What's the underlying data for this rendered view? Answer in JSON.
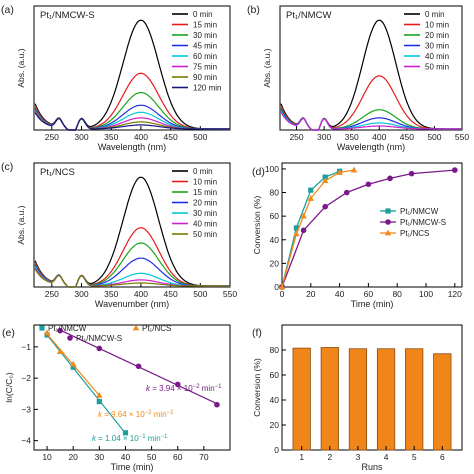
{
  "chart_data": [
    {
      "id": "a",
      "type": "line",
      "panel_label": "(a)",
      "sample": "Pt₁/NMCW-S",
      "xlabel": "Wavelength (nm)",
      "ylabel": "Abs. (a.u.)",
      "xlim": [
        220,
        550
      ],
      "xticks": [
        250,
        300,
        350,
        400,
        450,
        500
      ],
      "legend_position": "top-right",
      "peak": {
        "x": 400,
        "width": 30
      },
      "series": [
        {
          "name": "0 min",
          "color": "#000000",
          "peak": 2.15,
          "base": 0.5
        },
        {
          "name": "15 min",
          "color": "#e8191c",
          "peak": 1.1,
          "base": 0.46
        },
        {
          "name": "30 min",
          "color": "#1aa41a",
          "peak": 0.72,
          "base": 0.42
        },
        {
          "name": "45 min",
          "color": "#1f2fe6",
          "peak": 0.47,
          "base": 0.4
        },
        {
          "name": "60 min",
          "color": "#00c8d8",
          "peak": 0.33,
          "base": 0.38
        },
        {
          "name": "75 min",
          "color": "#d020d0",
          "peak": 0.22,
          "base": 0.36
        },
        {
          "name": "90 min",
          "color": "#7a7a00",
          "peak": 0.14,
          "base": 0.34
        },
        {
          "name": "120 min",
          "color": "#161680",
          "peak": 0.08,
          "base": 0.32
        }
      ]
    },
    {
      "id": "b",
      "type": "line",
      "panel_label": "(b)",
      "sample": "Pt₁/NMCW",
      "xlabel": "Wavelength (nm)",
      "ylabel": "Abs. (a.u.)",
      "xlim": [
        220,
        550
      ],
      "xticks": [
        250,
        300,
        350,
        400,
        450,
        500,
        550
      ],
      "legend_position": "top-right",
      "peak": {
        "x": 400,
        "width": 30
      },
      "series": [
        {
          "name": "0 min",
          "color": "#000000",
          "peak": 2.15,
          "base": 0.5
        },
        {
          "name": "10 min",
          "color": "#e8191c",
          "peak": 1.05,
          "base": 0.46
        },
        {
          "name": "20 min",
          "color": "#1aa41a",
          "peak": 0.38,
          "base": 0.42
        },
        {
          "name": "30 min",
          "color": "#1f2fe6",
          "peak": 0.22,
          "base": 0.39
        },
        {
          "name": "40 min",
          "color": "#00c8d8",
          "peak": 0.12,
          "base": 0.36
        },
        {
          "name": "50 min",
          "color": "#d020d0",
          "peak": 0.06,
          "base": 0.33
        }
      ]
    },
    {
      "id": "c",
      "type": "line",
      "panel_label": "(c)",
      "sample": "Pt₁/NCS",
      "xlabel": "Wavenumber (nm)",
      "ylabel": "Abs. (a.u.)",
      "xlim": [
        220,
        550
      ],
      "xticks": [
        250,
        300,
        350,
        400,
        450,
        500,
        550
      ],
      "legend_position": "top-right",
      "peak": {
        "x": 400,
        "width": 30
      },
      "series": [
        {
          "name": "0 min",
          "color": "#000000",
          "peak": 2.15,
          "base": 0.5
        },
        {
          "name": "10 min",
          "color": "#e8191c",
          "peak": 1.15,
          "base": 0.47
        },
        {
          "name": "15 min",
          "color": "#1aa41a",
          "peak": 0.85,
          "base": 0.44
        },
        {
          "name": "20 min",
          "color": "#1f2fe6",
          "peak": 0.55,
          "base": 0.42
        },
        {
          "name": "30 min",
          "color": "#00c8d8",
          "peak": 0.25,
          "base": 0.39
        },
        {
          "name": "40 min",
          "color": "#d020d0",
          "peak": 0.12,
          "base": 0.36
        },
        {
          "name": "50 min",
          "color": "#7a7a00",
          "peak": 0.06,
          "base": 0.33
        }
      ]
    },
    {
      "id": "d",
      "type": "line",
      "panel_label": "(d)",
      "xlabel": "Time (min)",
      "ylabel": "Conversion (%)",
      "xlim": [
        0,
        125
      ],
      "ylim": [
        0,
        105
      ],
      "xticks": [
        0,
        20,
        40,
        60,
        80,
        100,
        120
      ],
      "yticks": [
        0,
        20,
        40,
        60,
        80,
        100
      ],
      "legend_position": "right",
      "series": [
        {
          "name": "Pt₁/NMCW",
          "color": "#1a9e9e",
          "marker": "square",
          "x": [
            0,
            10,
            20,
            30,
            40
          ],
          "y": [
            0,
            50,
            82,
            93,
            98
          ]
        },
        {
          "name": "Pt₁/NMCW-S",
          "color": "#7a1a8a",
          "marker": "circle",
          "x": [
            0,
            15,
            30,
            45,
            60,
            75,
            90,
            120
          ],
          "y": [
            0,
            48,
            68,
            80,
            87,
            92,
            96,
            99
          ]
        },
        {
          "name": "Pt₁/NCS",
          "color": "#f08a1a",
          "marker": "triangle",
          "x": [
            0,
            10,
            15,
            20,
            30,
            40,
            50
          ],
          "y": [
            0,
            45,
            60,
            75,
            90,
            97,
            99
          ]
        }
      ]
    },
    {
      "id": "e",
      "type": "scatter",
      "panel_label": "(e)",
      "xlabel": "Time (min)",
      "ylabel": "ln(C/C₀)",
      "xlim": [
        5,
        80
      ],
      "ylim": [
        -4.3,
        -0.3
      ],
      "xticks": [
        10,
        20,
        30,
        40,
        50,
        60,
        70
      ],
      "yticks": [
        -1,
        -2,
        -3,
        -4
      ],
      "legend_position": "top",
      "series": [
        {
          "name": "Pt₁/NMCW",
          "color": "#1a9e9e",
          "marker": "square",
          "x": [
            10,
            20,
            30,
            40
          ],
          "y": [
            -0.62,
            -1.65,
            -2.75,
            -3.75
          ],
          "fit_label_parts": [
            "k",
            " = 1.04 × 10",
            "−1",
            " min",
            "−1"
          ]
        },
        {
          "name": "Pt₁/NCS",
          "color": "#f08a1a",
          "marker": "triangle",
          "x": [
            10,
            15,
            20,
            30
          ],
          "y": [
            -0.55,
            -1.15,
            -1.55,
            -2.55
          ],
          "fit_label_parts": [
            "k",
            " = 9.64 × 10",
            "−2",
            " min",
            "−1"
          ]
        },
        {
          "name": "Pt₁/NMCW-S",
          "color": "#7a1a8a",
          "marker": "circle",
          "x": [
            15,
            30,
            45,
            60,
            75
          ],
          "y": [
            -0.48,
            -1.05,
            -1.62,
            -2.2,
            -2.85
          ],
          "fit_label_parts": [
            "k",
            " = 3.94 × 10",
            "−2",
            " min",
            "−1"
          ]
        }
      ]
    },
    {
      "id": "f",
      "type": "bar",
      "panel_label": "(f)",
      "xlabel": "Runs",
      "ylabel": "Conversion (%)",
      "categories": [
        "1",
        "2",
        "3",
        "4",
        "5",
        "6"
      ],
      "values": [
        81.5,
        82,
        81,
        81,
        81,
        77
      ],
      "ylim": [
        0,
        100
      ],
      "yticks": [
        0,
        20,
        40,
        60,
        80
      ],
      "bar_color": "#f0861a",
      "bar_edge": "#8a4a10"
    }
  ]
}
